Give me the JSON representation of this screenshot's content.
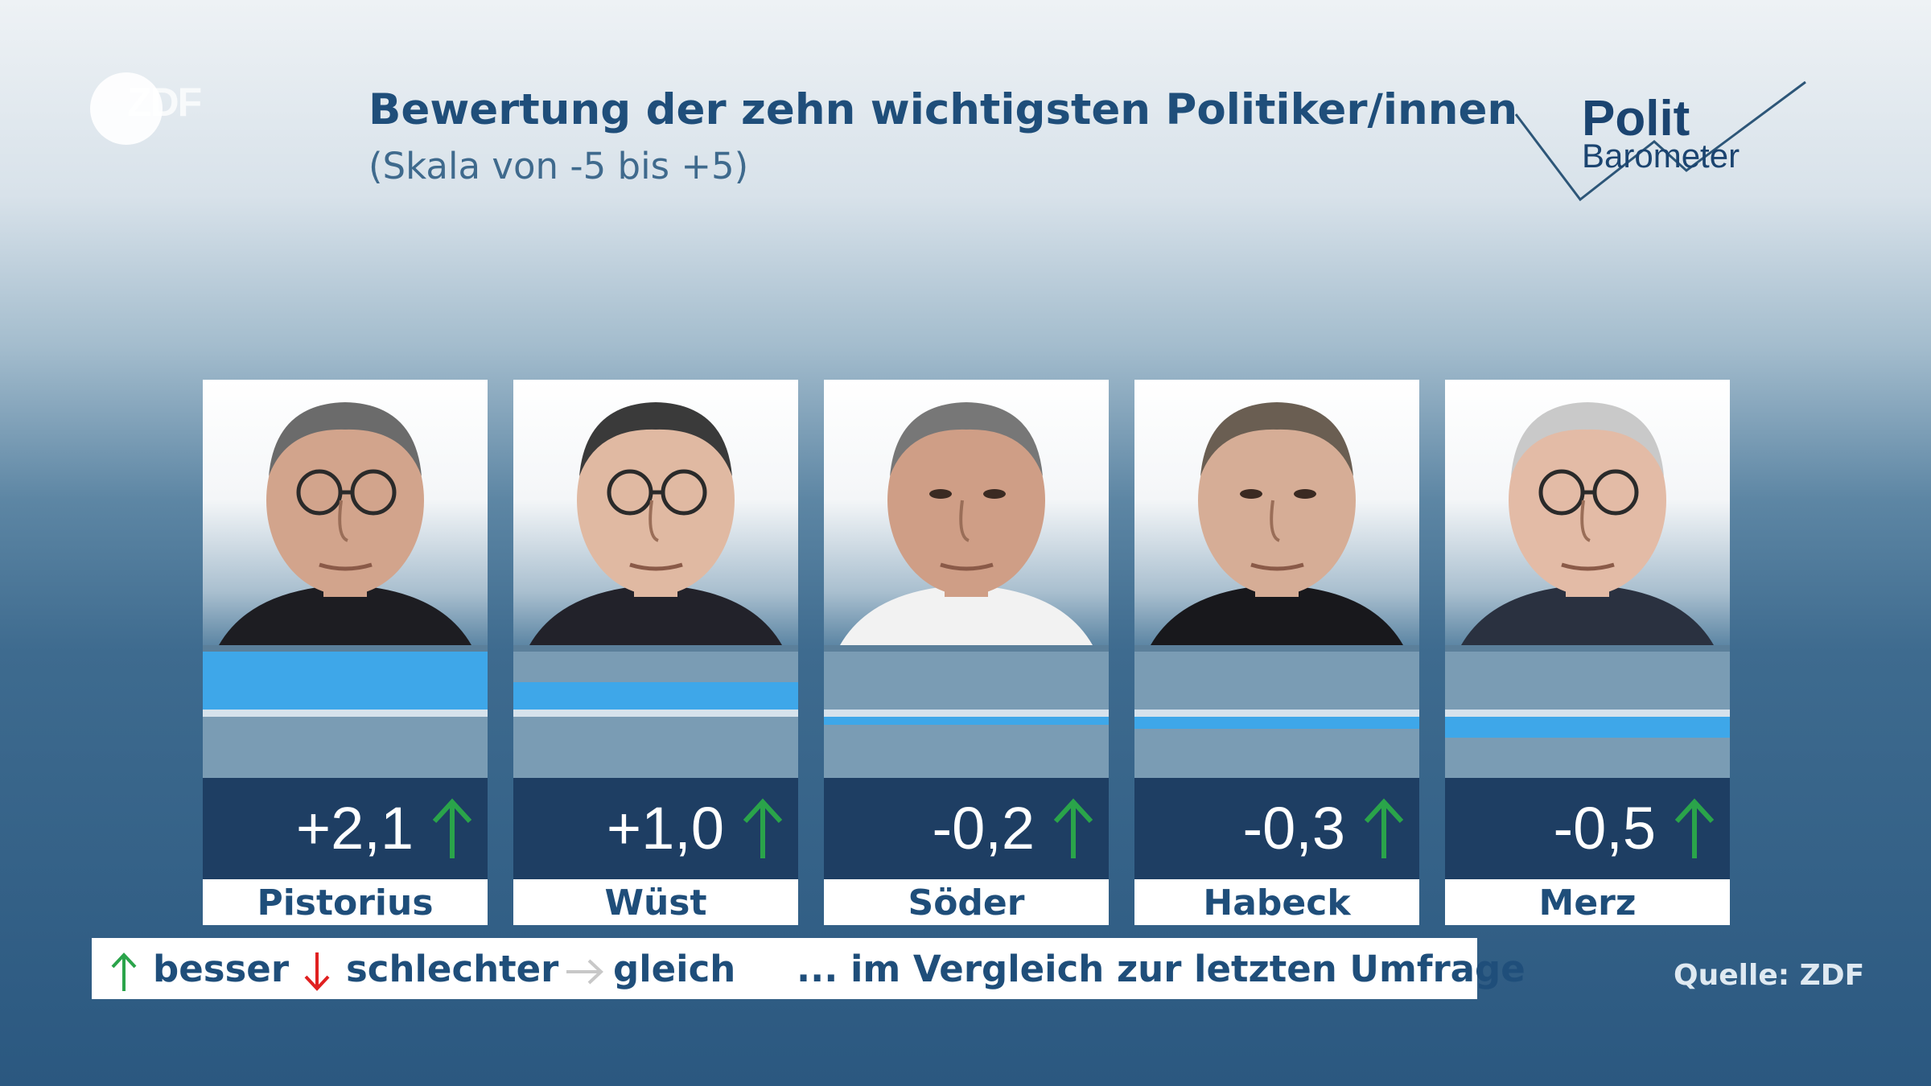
{
  "header": {
    "logo_text": "ZDF",
    "title": "Bewertung der zehn wichtigsten Politiker/innen",
    "subtitle": "(Skala von -5 bis +5)",
    "brand_line1": "Polit",
    "brand_line2": "Barometer"
  },
  "chart_data": {
    "type": "bar",
    "title": "Bewertung der zehn wichtigsten Politiker/innen",
    "subtitle": "(Skala von -5 bis +5)",
    "ylim": [
      -5,
      5
    ],
    "categories": [
      "Pistorius",
      "Wüst",
      "Söder",
      "Habeck",
      "Merz"
    ],
    "values": [
      2.1,
      1.0,
      -0.2,
      -0.3,
      -0.5
    ],
    "value_labels": [
      "+2,1",
      "+1,0",
      "-0,2",
      "-0,3",
      "-0,5"
    ],
    "trend": [
      "besser",
      "besser",
      "besser",
      "besser",
      "besser"
    ],
    "colors": {
      "bar": "#3ea7e9",
      "trend_up": "#2aa44a",
      "trend_down": "#e02020",
      "trend_same": "#c8c8c8"
    }
  },
  "legend": {
    "better": "besser",
    "worse": "schlechter",
    "same": "gleich",
    "note": "... im Vergleich zur letzten Umfrage"
  },
  "source": "Quelle: ZDF"
}
